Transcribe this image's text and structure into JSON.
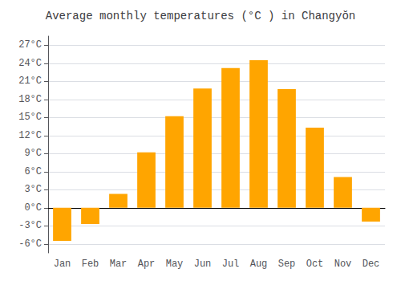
{
  "chart_data": {
    "type": "bar",
    "title": "Average monthly temperatures (°C ) in Changyŏn",
    "categories": [
      "Jan",
      "Feb",
      "Mar",
      "Apr",
      "May",
      "Jun",
      "Jul",
      "Aug",
      "Sep",
      "Oct",
      "Nov",
      "Dec"
    ],
    "values": [
      -5.5,
      -2.7,
      2.3,
      9.2,
      15.2,
      19.8,
      23.2,
      24.5,
      19.7,
      13.3,
      5.1,
      -2.3
    ],
    "color": "#FFA500",
    "ylim": [
      -7.5,
      28.5
    ],
    "yticks": [
      {
        "value": -6,
        "label": "-6°C"
      },
      {
        "value": -3,
        "label": "-3°C"
      },
      {
        "value": 0,
        "label": "0°C"
      },
      {
        "value": 3,
        "label": "3°C"
      },
      {
        "value": 6,
        "label": "6°C"
      },
      {
        "value": 9,
        "label": "9°C"
      },
      {
        "value": 12,
        "label": "12°C"
      },
      {
        "value": 15,
        "label": "15°C"
      },
      {
        "value": 18,
        "label": "18°C"
      },
      {
        "value": 21,
        "label": "21°C"
      },
      {
        "value": 24,
        "label": "24°C"
      },
      {
        "value": 27,
        "label": "27°C"
      }
    ],
    "grid": true
  }
}
